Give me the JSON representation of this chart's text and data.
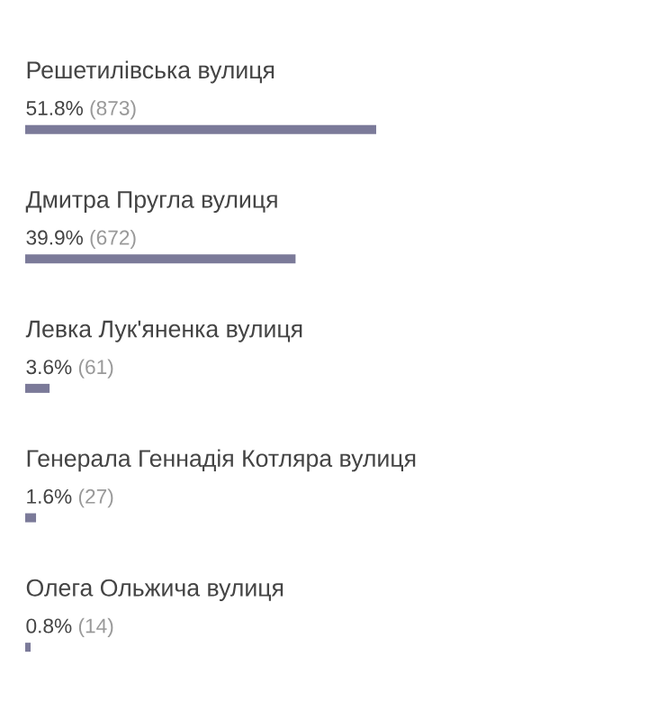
{
  "chart_data": {
    "type": "bar",
    "orientation": "horizontal",
    "categories": [
      "Решетилівська вулиця",
      "Дмитра Пругла вулиця",
      "Левка Лук'яненка вулиця",
      "Генерала  Геннадія Котляра вулиця",
      "Олега Ольжича вулиця"
    ],
    "values": [
      51.8,
      39.9,
      3.6,
      1.6,
      0.8
    ],
    "value_labels": [
      "51.8%",
      "39.9%",
      "3.6%",
      "1.6%",
      "0.8%"
    ],
    "annotations": [
      "(873)",
      "(672)",
      "(61)",
      "(27)",
      "(14)"
    ],
    "color": "#7b7a99"
  }
}
